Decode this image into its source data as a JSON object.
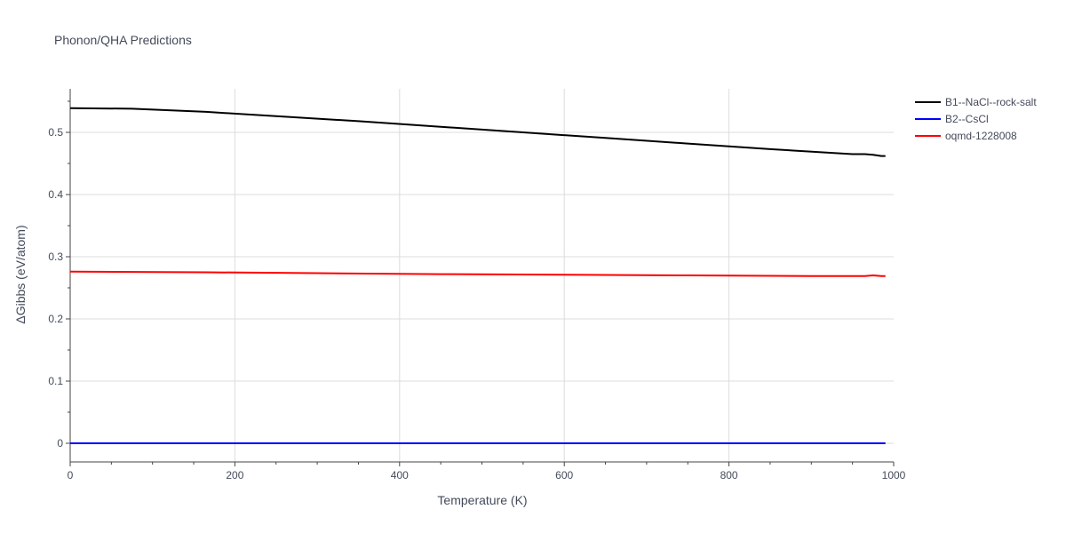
{
  "chart_data": {
    "type": "line",
    "title": "Phonon/QHA Predictions",
    "xlabel": "Temperature (K)",
    "ylabel": "ΔGibbs (eV/atom)",
    "xlim": [
      0,
      1000
    ],
    "ylim": [
      -0.03,
      0.57
    ],
    "xticks": [
      0,
      200,
      400,
      600,
      800,
      1000
    ],
    "xtick_labels": [
      "0",
      "200",
      "400",
      "600",
      "800",
      "1000"
    ],
    "yticks": [
      0,
      0.1,
      0.2,
      0.3,
      0.4,
      0.5
    ],
    "ytick_labels": [
      "0",
      "0.1",
      "0.2",
      "0.3",
      "0.4",
      "0.5"
    ],
    "grid": true,
    "legend_position": "top-right",
    "series": [
      {
        "name": "B1--NaCl--rock-salt",
        "color": "#000000",
        "x": [
          0,
          75,
          165,
          250,
          350,
          450,
          550,
          650,
          750,
          850,
          950,
          965,
          975,
          985,
          990
        ],
        "y": [
          0.539,
          0.538,
          0.533,
          0.526,
          0.518,
          0.509,
          0.5,
          0.491,
          0.482,
          0.473,
          0.465,
          0.465,
          0.464,
          0.462,
          0.462
        ]
      },
      {
        "name": "B2--CsCl",
        "color": "#0000ff",
        "x": [
          0,
          990
        ],
        "y": [
          0,
          0
        ]
      },
      {
        "name": "oqmd-1228008",
        "color": "#ff0000",
        "x": [
          0,
          165,
          300,
          450,
          600,
          750,
          900,
          965,
          975,
          985,
          990
        ],
        "y": [
          0.276,
          0.275,
          0.2735,
          0.272,
          0.271,
          0.27,
          0.269,
          0.269,
          0.27,
          0.269,
          0.269
        ]
      }
    ]
  }
}
